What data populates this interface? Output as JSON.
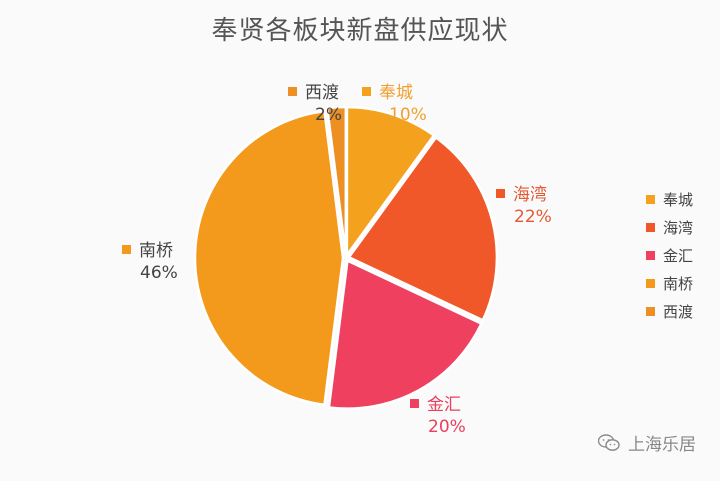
{
  "chart_data": {
    "type": "pie",
    "title": "奉贤各板块新盘供应现状",
    "slices": [
      {
        "label": "奉城",
        "value": 10,
        "value_label": "10%",
        "color": "#f4a21e"
      },
      {
        "label": "海湾",
        "value": 22,
        "value_label": "22%",
        "color": "#f0582a"
      },
      {
        "label": "金汇",
        "value": 20,
        "value_label": "20%",
        "color": "#ef4060"
      },
      {
        "label": "南桥",
        "value": 46,
        "value_label": "46%",
        "color": "#f39a1c"
      },
      {
        "label": "西渡",
        "value": 2,
        "value_label": "2%",
        "color": "#ee8f24"
      }
    ],
    "legend": [
      "奉城",
      "海湾",
      "金汇",
      "南桥",
      "西渡"
    ],
    "legend_position": "right",
    "label_colors": {
      "奉城": "#f0a030",
      "海湾": "#e35a34",
      "金汇": "#e8405e",
      "南桥": "#444444",
      "西渡": "#444444"
    }
  },
  "watermark": {
    "text": "上海乐居",
    "icon": "wechat-icon"
  }
}
